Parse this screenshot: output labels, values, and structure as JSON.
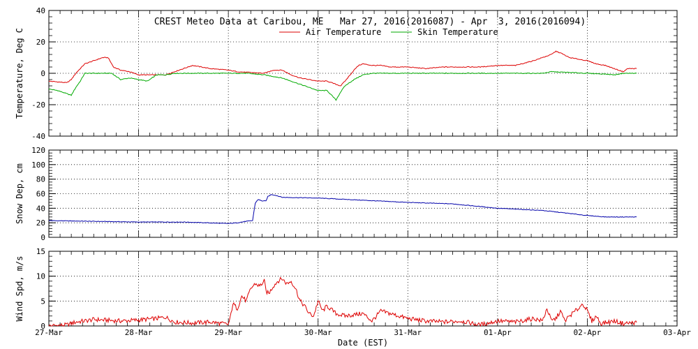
{
  "chart_data": {
    "type": "line",
    "title": "CREST Meteo Data at Caribou, ME   Mar 27, 2016(2016087) - Apr  3, 2016(2016094)",
    "xlabel": "Date (EST)",
    "x_ticks": [
      "27-Mar",
      "28-Mar",
      "29-Mar",
      "30-Mar",
      "31-Mar",
      "01-Apr",
      "02-Apr",
      "03-Apr"
    ],
    "xlim_days": [
      0,
      7
    ],
    "grid": true,
    "panels": [
      {
        "ylabel": "Temperature, Deg C",
        "ylim": [
          -40,
          40
        ],
        "yticks": [
          -40,
          -20,
          0,
          20,
          40
        ],
        "legend_placement": "top-center",
        "series": [
          {
            "name": "Air Temperature",
            "color": "#dd0000",
            "points": [
              [
                0,
                -5
              ],
              [
                0.2,
                -6
              ],
              [
                0.25,
                -4
              ],
              [
                0.3,
                0
              ],
              [
                0.4,
                6
              ],
              [
                0.5,
                8
              ],
              [
                0.6,
                10
              ],
              [
                0.66,
                10
              ],
              [
                0.72,
                4
              ],
              [
                0.8,
                2
              ],
              [
                0.9,
                1
              ],
              [
                1.0,
                -1
              ],
              [
                1.1,
                -1
              ],
              [
                1.3,
                -1
              ],
              [
                1.4,
                1
              ],
              [
                1.5,
                3
              ],
              [
                1.6,
                5
              ],
              [
                1.7,
                4
              ],
              [
                1.8,
                3
              ],
              [
                1.9,
                2.5
              ],
              [
                2.0,
                2
              ],
              [
                2.1,
                1
              ],
              [
                2.25,
                0.5
              ],
              [
                2.4,
                0
              ],
              [
                2.5,
                2
              ],
              [
                2.6,
                2
              ],
              [
                2.7,
                -1
              ],
              [
                2.8,
                -3
              ],
              [
                2.9,
                -4
              ],
              [
                3.0,
                -5
              ],
              [
                3.1,
                -5
              ],
              [
                3.2,
                -7
              ],
              [
                3.25,
                -8
              ],
              [
                3.3,
                -5
              ],
              [
                3.4,
                2
              ],
              [
                3.45,
                5
              ],
              [
                3.5,
                6
              ],
              [
                3.6,
                5
              ],
              [
                3.7,
                5
              ],
              [
                3.8,
                4
              ],
              [
                4.0,
                4
              ],
              [
                4.2,
                3
              ],
              [
                4.4,
                4
              ],
              [
                4.6,
                4
              ],
              [
                4.8,
                4
              ],
              [
                5.0,
                5
              ],
              [
                5.2,
                5
              ],
              [
                5.4,
                8
              ],
              [
                5.5,
                10
              ],
              [
                5.6,
                12
              ],
              [
                5.65,
                14
              ],
              [
                5.7,
                13
              ],
              [
                5.8,
                10
              ],
              [
                6.0,
                8
              ],
              [
                6.1,
                6
              ],
              [
                6.2,
                5
              ],
              [
                6.3,
                3
              ],
              [
                6.4,
                1
              ],
              [
                6.45,
                3
              ],
              [
                6.55,
                3
              ]
            ]
          },
          {
            "name": "Skin Temperature",
            "color": "#00aa00",
            "points": [
              [
                0,
                -10
              ],
              [
                0.1,
                -11
              ],
              [
                0.2,
                -13
              ],
              [
                0.25,
                -14
              ],
              [
                0.3,
                -9
              ],
              [
                0.35,
                -5
              ],
              [
                0.4,
                0
              ],
              [
                0.6,
                0
              ],
              [
                0.7,
                0
              ],
              [
                0.75,
                -2
              ],
              [
                0.8,
                -4
              ],
              [
                0.9,
                -3
              ],
              [
                1.0,
                -4
              ],
              [
                1.1,
                -5
              ],
              [
                1.2,
                -1
              ],
              [
                1.3,
                -1
              ],
              [
                1.4,
                0
              ],
              [
                2.0,
                0
              ],
              [
                2.2,
                0
              ],
              [
                2.4,
                -1
              ],
              [
                2.6,
                -3
              ],
              [
                2.7,
                -5
              ],
              [
                2.8,
                -7
              ],
              [
                2.9,
                -9
              ],
              [
                3.0,
                -11
              ],
              [
                3.1,
                -11
              ],
              [
                3.15,
                -14
              ],
              [
                3.2,
                -17
              ],
              [
                3.25,
                -12
              ],
              [
                3.3,
                -8
              ],
              [
                3.4,
                -4
              ],
              [
                3.5,
                -1
              ],
              [
                3.6,
                0
              ],
              [
                4.0,
                0
              ],
              [
                5.0,
                0
              ],
              [
                5.5,
                0
              ],
              [
                5.6,
                1
              ],
              [
                5.8,
                0.5
              ],
              [
                6.0,
                0
              ],
              [
                6.2,
                -0.5
              ],
              [
                6.3,
                -1
              ],
              [
                6.4,
                0
              ],
              [
                6.55,
                0
              ]
            ]
          }
        ]
      },
      {
        "ylabel": "Snow Dep, cm",
        "ylim": [
          0,
          120
        ],
        "yticks": [
          0,
          20,
          40,
          60,
          80,
          100,
          120
        ],
        "series": [
          {
            "name": "",
            "color": "#0000aa",
            "points": [
              [
                0,
                23
              ],
              [
                0.5,
                22
              ],
              [
                1.0,
                21
              ],
              [
                1.5,
                21
              ],
              [
                2.0,
                19
              ],
              [
                2.1,
                20
              ],
              [
                2.2,
                22
              ],
              [
                2.27,
                23
              ],
              [
                2.3,
                47
              ],
              [
                2.33,
                52
              ],
              [
                2.38,
                50
              ],
              [
                2.42,
                50
              ],
              [
                2.44,
                56
              ],
              [
                2.48,
                59
              ],
              [
                2.55,
                57
              ],
              [
                2.6,
                55
              ],
              [
                3.0,
                54
              ],
              [
                3.5,
                51
              ],
              [
                4.0,
                48
              ],
              [
                4.5,
                46
              ],
              [
                5.0,
                40
              ],
              [
                5.5,
                37
              ],
              [
                6.0,
                30
              ],
              [
                6.2,
                28
              ],
              [
                6.55,
                28
              ]
            ]
          }
        ]
      },
      {
        "ylabel": "Wind Spd, m/s",
        "ylim": [
          0,
          15
        ],
        "yticks": [
          0,
          5,
          10,
          15
        ],
        "series": [
          {
            "name": "",
            "color": "#dd0000",
            "points": [
              [
                0,
                0
              ],
              [
                0.2,
                0.2
              ],
              [
                0.3,
                0.8
              ],
              [
                0.4,
                1
              ],
              [
                0.5,
                1.3
              ],
              [
                0.6,
                1.2
              ],
              [
                0.8,
                1
              ],
              [
                1.0,
                1.2
              ],
              [
                1.2,
                1.5
              ],
              [
                1.3,
                1.8
              ],
              [
                1.4,
                0.8
              ],
              [
                1.6,
                0.6
              ],
              [
                1.8,
                0.8
              ],
              [
                2.0,
                0.3
              ],
              [
                2.02,
                1.5
              ],
              [
                2.05,
                4.5
              ],
              [
                2.1,
                3.5
              ],
              [
                2.15,
                6
              ],
              [
                2.2,
                5
              ],
              [
                2.25,
                7.5
              ],
              [
                2.3,
                8.5
              ],
              [
                2.35,
                8
              ],
              [
                2.4,
                9
              ],
              [
                2.42,
                7
              ],
              [
                2.45,
                6.5
              ],
              [
                2.5,
                8
              ],
              [
                2.55,
                9
              ],
              [
                2.6,
                9.5
              ],
              [
                2.65,
                8.5
              ],
              [
                2.7,
                9
              ],
              [
                2.75,
                7.5
              ],
              [
                2.8,
                5
              ],
              [
                2.85,
                4
              ],
              [
                2.9,
                2.5
              ],
              [
                2.95,
                2
              ],
              [
                3.0,
                5
              ],
              [
                3.05,
                3
              ],
              [
                3.1,
                4
              ],
              [
                3.2,
                2.5
              ],
              [
                3.3,
                2
              ],
              [
                3.5,
                2.5
              ],
              [
                3.6,
                1
              ],
              [
                3.7,
                3
              ],
              [
                3.8,
                2.5
              ],
              [
                4.0,
                1.5
              ],
              [
                4.2,
                1
              ],
              [
                4.4,
                0.8
              ],
              [
                4.6,
                1
              ],
              [
                4.8,
                0.2
              ],
              [
                5.0,
                1
              ],
              [
                5.2,
                0.8
              ],
              [
                5.4,
                1.5
              ],
              [
                5.5,
                1
              ],
              [
                5.55,
                3.5
              ],
              [
                5.6,
                1
              ],
              [
                5.65,
                1.5
              ],
              [
                5.7,
                3
              ],
              [
                5.75,
                1
              ],
              [
                5.8,
                2
              ],
              [
                5.9,
                3.5
              ],
              [
                5.95,
                4.5
              ],
              [
                6.0,
                3
              ],
              [
                6.05,
                1
              ],
              [
                6.1,
                2
              ],
              [
                6.15,
                0.5
              ],
              [
                6.3,
                1
              ],
              [
                6.4,
                0.5
              ],
              [
                6.55,
                0.7
              ]
            ]
          }
        ]
      }
    ]
  }
}
